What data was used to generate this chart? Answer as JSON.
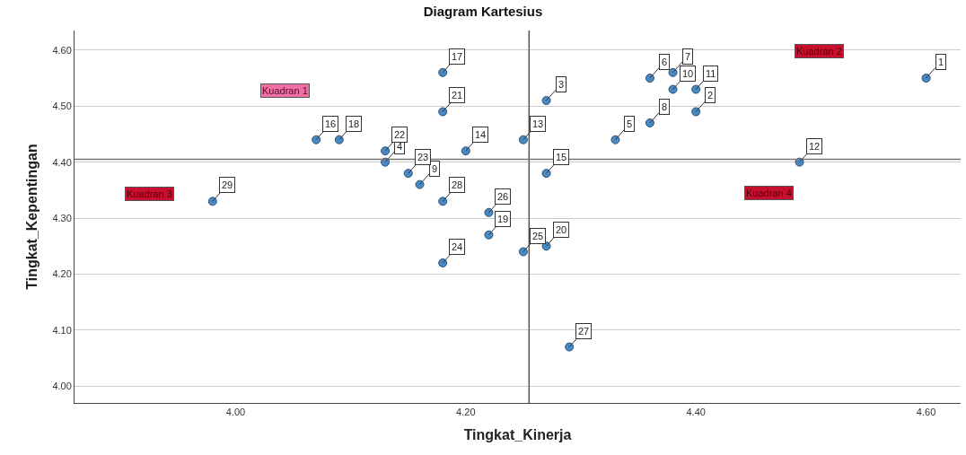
{
  "chart_data": {
    "type": "scatter",
    "title": "Diagram Kartesius",
    "xlabel": "Tingkat_Kinerja",
    "ylabel": "Tingkat_Kepentingan",
    "x": [
      4.6,
      4.4,
      4.27,
      4.13,
      4.33,
      4.36,
      4.38,
      4.36,
      4.16,
      4.38,
      4.4,
      4.49,
      4.25,
      4.2,
      4.27,
      4.07,
      4.18,
      4.09,
      4.22,
      4.27,
      4.18,
      4.13,
      4.15,
      4.18,
      4.25,
      4.22,
      4.29,
      4.18,
      3.98
    ],
    "values": [
      4.55,
      4.49,
      4.51,
      4.4,
      4.44,
      4.55,
      4.56,
      4.47,
      4.36,
      4.53,
      4.53,
      4.4,
      4.44,
      4.42,
      4.38,
      4.44,
      4.56,
      4.44,
      4.27,
      4.25,
      4.49,
      4.42,
      4.38,
      4.22,
      4.24,
      4.31,
      4.07,
      4.33,
      4.33
    ],
    "color": "#4a8ac4",
    "marker": "circle",
    "xlim": [
      3.86,
      4.63
    ],
    "xticks": [
      {
        "value": 4,
        "label": "4.00"
      },
      {
        "value": 4.2,
        "label": "4.20"
      },
      {
        "value": 4.4,
        "label": "4.40"
      },
      {
        "value": 4.6,
        "label": "4.60"
      }
    ],
    "ylim": [
      3.97,
      4.635
    ],
    "yticks": [
      {
        "value": 4,
        "label": "4.00"
      },
      {
        "value": 4.1,
        "label": "4.10"
      },
      {
        "value": 4.2,
        "label": "4.20"
      },
      {
        "value": 4.3,
        "label": "4.30"
      },
      {
        "value": 4.4,
        "label": "4.40"
      },
      {
        "value": 4.5,
        "label": "4.50"
      },
      {
        "value": 4.6,
        "label": "4.60"
      }
    ],
    "grid": "y",
    "ref_lines": [
      {
        "axis": "x",
        "value": 4.255,
        "color": "#555555"
      },
      {
        "axis": "y",
        "value": 4.405,
        "color": "#777777"
      }
    ],
    "annotations": [
      "Kuadran 1",
      "Kuadran 2",
      "Kuadran 3",
      "Kuadran 4",
      {
        "text": "1",
        "x": 4.6,
        "y": 4.55
      },
      {
        "text": "2",
        "x": 4.4,
        "y": 4.49
      },
      {
        "text": "3",
        "x": 4.27,
        "y": 4.51
      },
      {
        "text": "4",
        "x": 4.13,
        "y": 4.4
      },
      {
        "text": "5",
        "x": 4.33,
        "y": 4.44
      },
      {
        "text": "6",
        "x": 4.36,
        "y": 4.55
      },
      {
        "text": "7",
        "x": 4.38,
        "y": 4.56
      },
      {
        "text": "8",
        "x": 4.36,
        "y": 4.47
      },
      {
        "text": "9",
        "x": 4.16,
        "y": 4.36
      },
      {
        "text": "10",
        "x": 4.38,
        "y": 4.53
      },
      {
        "text": "11",
        "x": 4.4,
        "y": 4.53
      },
      {
        "text": "12",
        "x": 4.49,
        "y": 4.4
      },
      {
        "text": "13",
        "x": 4.25,
        "y": 4.44
      },
      {
        "text": "14",
        "x": 4.2,
        "y": 4.42
      },
      {
        "text": "15",
        "x": 4.27,
        "y": 4.38
      },
      {
        "text": "16",
        "x": 4.07,
        "y": 4.44
      },
      {
        "text": "17",
        "x": 4.18,
        "y": 4.56
      },
      {
        "text": "18",
        "x": 4.09,
        "y": 4.44
      },
      {
        "text": "19",
        "x": 4.22,
        "y": 4.27
      },
      {
        "text": "20",
        "x": 4.27,
        "y": 4.25
      },
      {
        "text": "21",
        "x": 4.18,
        "y": 4.49
      },
      {
        "text": "22",
        "x": 4.13,
        "y": 4.42
      },
      {
        "text": "23",
        "x": 4.15,
        "y": 4.38
      },
      {
        "text": "24",
        "x": 4.18,
        "y": 4.22
      },
      {
        "text": "25",
        "x": 4.25,
        "y": 4.24
      },
      {
        "text": "26",
        "x": 4.22,
        "y": 4.31
      },
      {
        "text": "27",
        "x": 4.29,
        "y": 4.07
      },
      {
        "text": "28",
        "x": 4.18,
        "y": 4.33
      },
      {
        "text": "29",
        "x": 3.98,
        "y": 4.33
      }
    ]
  }
}
